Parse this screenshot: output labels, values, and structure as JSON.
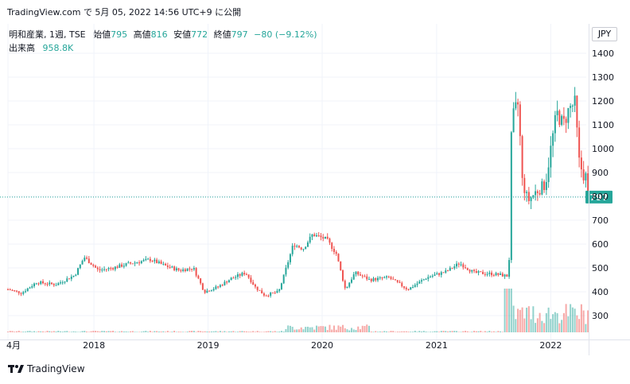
{
  "header": {
    "line": "TradingView.com で 5月 05, 2022 14:56 UTC+9 に公開"
  },
  "legend": {
    "symbol": "明和産業, 1週, TSE",
    "open_label": "始値",
    "open": "795",
    "high_label": "高値",
    "high": "816",
    "low_label": "安値",
    "low": "772",
    "close_label": "終値",
    "close": "797",
    "change": "−80 (−9.12%)",
    "volume_label": "出来高",
    "volume": "958.8K"
  },
  "currency": "JPY",
  "last_price_tag": "797",
  "footer": {
    "brand": "TradingView"
  },
  "colors": {
    "up": "#26a69a",
    "down": "#ef5350",
    "grid": "#f0f3fa",
    "text": "#131722"
  },
  "chart_data": {
    "type": "candlestick",
    "y_ticks": [
      300,
      400,
      500,
      600,
      700,
      800,
      900,
      1000,
      1100,
      1200,
      1300,
      1400
    ],
    "x_tick_labels": [
      "4月",
      "2018",
      "2019",
      "2020",
      "2021",
      "2022"
    ],
    "x_tick_dates": [
      "2017-04-01",
      "2018-01-01",
      "2019-01-01",
      "2020-01-01",
      "2021-01-01",
      "2022-01-01"
    ],
    "x_range": [
      "2017-04-01",
      "2022-05-20"
    ],
    "y_range": [
      220,
      1450
    ],
    "last_close": 797,
    "approx_close_path": [
      [
        "2017-04-01",
        410
      ],
      [
        "2017-05-15",
        395
      ],
      [
        "2017-07-01",
        440
      ],
      [
        "2017-09-01",
        430
      ],
      [
        "2017-11-01",
        470
      ],
      [
        "2017-12-01",
        545
      ],
      [
        "2018-01-15",
        490
      ],
      [
        "2018-03-01",
        500
      ],
      [
        "2018-05-01",
        520
      ],
      [
        "2018-07-01",
        535
      ],
      [
        "2018-08-15",
        510
      ],
      [
        "2018-10-01",
        490
      ],
      [
        "2018-11-15",
        500
      ],
      [
        "2018-12-20",
        400
      ],
      [
        "2019-02-01",
        420
      ],
      [
        "2019-03-15",
        455
      ],
      [
        "2019-05-01",
        480
      ],
      [
        "2019-06-01",
        420
      ],
      [
        "2019-07-01",
        385
      ],
      [
        "2019-08-15",
        400
      ],
      [
        "2019-09-01",
        470
      ],
      [
        "2019-10-01",
        600
      ],
      [
        "2019-11-01",
        580
      ],
      [
        "2019-12-01",
        640
      ],
      [
        "2020-01-15",
        620
      ],
      [
        "2020-02-15",
        560
      ],
      [
        "2020-03-15",
        410
      ],
      [
        "2020-04-15",
        480
      ],
      [
        "2020-06-01",
        450
      ],
      [
        "2020-08-01",
        460
      ],
      [
        "2020-10-01",
        410
      ],
      [
        "2020-12-01",
        460
      ],
      [
        "2021-02-01",
        485
      ],
      [
        "2021-03-15",
        520
      ],
      [
        "2021-05-01",
        480
      ],
      [
        "2021-07-01",
        475
      ],
      [
        "2021-08-20",
        465
      ],
      [
        "2021-08-28",
        1040
      ],
      [
        "2021-09-05",
        1150
      ],
      [
        "2021-09-20",
        1190
      ],
      [
        "2021-10-01",
        870
      ],
      [
        "2021-10-20",
        780
      ],
      [
        "2021-11-15",
        820
      ],
      [
        "2021-12-15",
        850
      ],
      [
        "2022-01-01",
        1000
      ],
      [
        "2022-01-20",
        1150
      ],
      [
        "2022-02-10",
        1100
      ],
      [
        "2022-03-01",
        1170
      ],
      [
        "2022-03-20",
        1190
      ],
      [
        "2022-04-01",
        950
      ],
      [
        "2022-04-15",
        890
      ],
      [
        "2022-04-28",
        880
      ],
      [
        "2022-05-05",
        797
      ]
    ]
  }
}
